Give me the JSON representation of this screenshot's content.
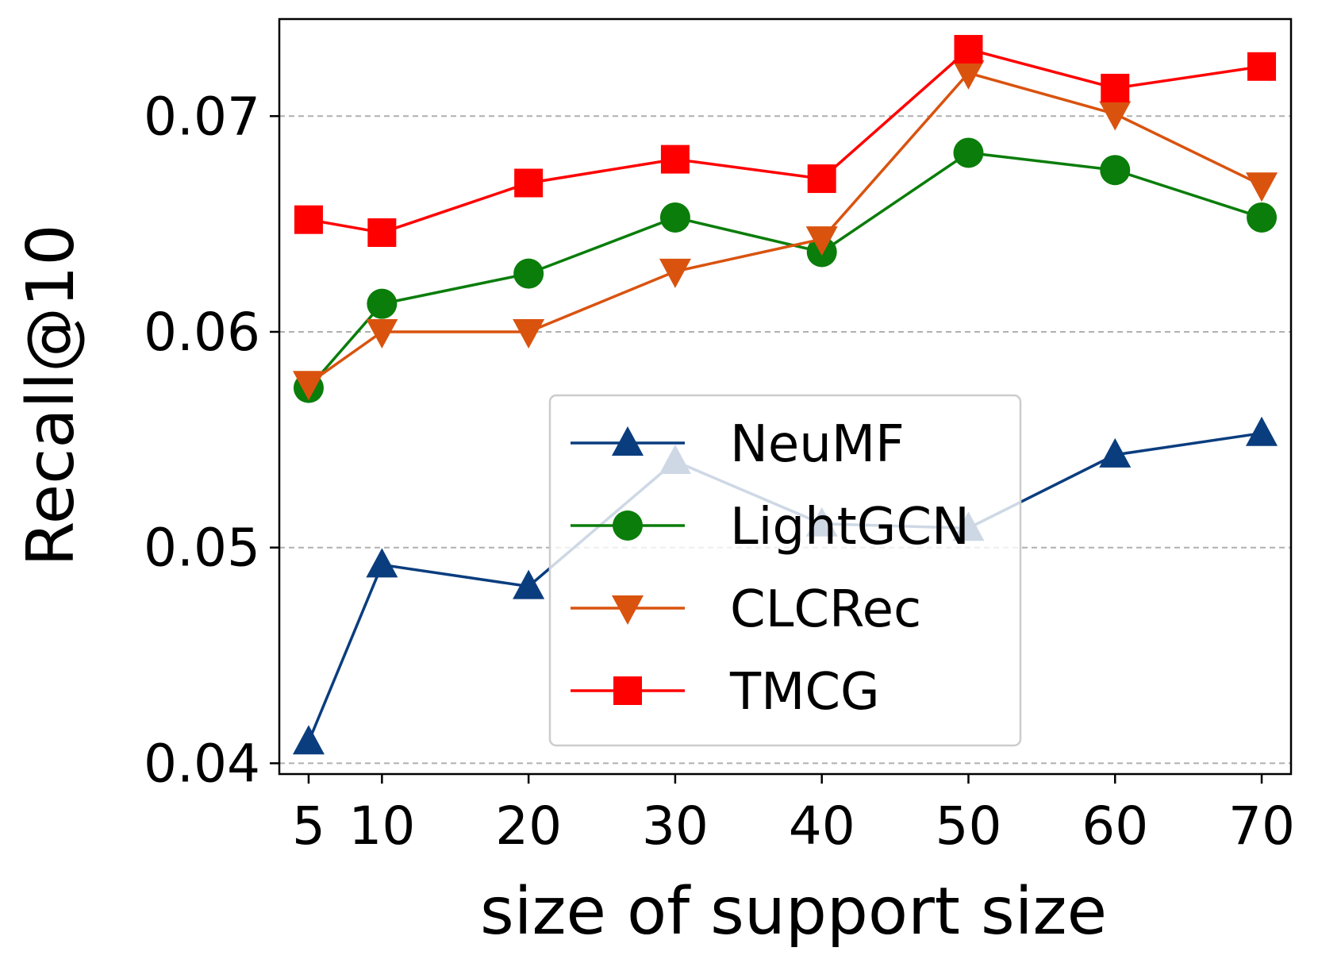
{
  "chart_data": {
    "type": "line",
    "title": "",
    "xlabel": "size of support size",
    "ylabel": "Recall@10",
    "x": [
      5,
      10,
      20,
      30,
      40,
      50,
      60,
      70
    ],
    "xticks": [
      "5",
      "10",
      "20",
      "30",
      "40",
      "50",
      "60",
      "70"
    ],
    "xlim": [
      3,
      72
    ],
    "ylim": [
      0.0395,
      0.0745
    ],
    "yticks": [
      "0.04",
      "0.05",
      "0.06",
      "0.07"
    ],
    "ytick_values": [
      0.04,
      0.05,
      0.06,
      0.07
    ],
    "grid": "horizontal-dashed",
    "legend_position": "lower-center",
    "series": [
      {
        "name": "NeuMF",
        "color": "#0a3d7e",
        "marker": "triangle-up",
        "values": [
          0.041,
          0.0492,
          0.0482,
          0.054,
          0.0511,
          0.0509,
          0.0543,
          0.0553
        ]
      },
      {
        "name": "LightGCN",
        "color": "#0a7d0a",
        "marker": "circle",
        "values": [
          0.0574,
          0.0613,
          0.0627,
          0.0653,
          0.0637,
          0.0683,
          0.0675,
          0.0653
        ]
      },
      {
        "name": "CLCRec",
        "color": "#d9530f",
        "marker": "triangle-down",
        "values": [
          0.0576,
          0.06,
          0.06,
          0.0628,
          0.0643,
          0.072,
          0.0701,
          0.0668
        ]
      },
      {
        "name": "TMCG",
        "color": "#ff0000",
        "marker": "square",
        "values": [
          0.0652,
          0.0646,
          0.0669,
          0.068,
          0.0671,
          0.0731,
          0.0713,
          0.0723
        ]
      }
    ]
  }
}
